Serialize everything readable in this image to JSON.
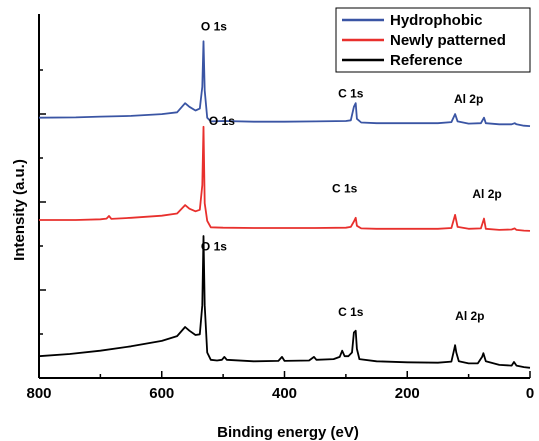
{
  "chart_data": {
    "type": "line",
    "xlabel": "Binding energy (eV)",
    "ylabel": "Intensity (a.u.)",
    "xlim": [
      800,
      0
    ],
    "x_reversed": true,
    "xticks": [
      "800",
      "600",
      "400",
      "200",
      "0"
    ],
    "grid": false,
    "legend_position": "top-right",
    "series": [
      {
        "name": "Hydrophobic",
        "color": "#3a55a4",
        "points": [
          [
            800,
            0.715
          ],
          [
            740,
            0.716
          ],
          [
            700,
            0.718
          ],
          [
            650,
            0.72
          ],
          [
            600,
            0.725
          ],
          [
            575,
            0.73
          ],
          [
            562,
            0.755
          ],
          [
            555,
            0.745
          ],
          [
            545,
            0.735
          ],
          [
            538,
            0.74
          ],
          [
            534,
            0.8
          ],
          [
            532,
            0.925
          ],
          [
            530,
            0.79
          ],
          [
            526,
            0.715
          ],
          [
            520,
            0.705
          ],
          [
            500,
            0.706
          ],
          [
            450,
            0.704
          ],
          [
            400,
            0.704
          ],
          [
            350,
            0.705
          ],
          [
            300,
            0.706
          ],
          [
            292,
            0.708
          ],
          [
            287,
            0.745
          ],
          [
            284,
            0.755
          ],
          [
            282,
            0.712
          ],
          [
            275,
            0.702
          ],
          [
            250,
            0.7
          ],
          [
            200,
            0.7
          ],
          [
            150,
            0.7
          ],
          [
            128,
            0.703
          ],
          [
            122,
            0.725
          ],
          [
            118,
            0.705
          ],
          [
            100,
            0.699
          ],
          [
            80,
            0.7
          ],
          [
            75,
            0.715
          ],
          [
            72,
            0.7
          ],
          [
            50,
            0.697
          ],
          [
            30,
            0.697
          ],
          [
            25,
            0.7
          ],
          [
            22,
            0.697
          ],
          [
            10,
            0.693
          ],
          [
            0,
            0.692
          ]
        ]
      },
      {
        "name": "Newly patterned",
        "color": "#e8302d",
        "points": [
          [
            800,
            0.434
          ],
          [
            740,
            0.434
          ],
          [
            700,
            0.436
          ],
          [
            690,
            0.438
          ],
          [
            686,
            0.445
          ],
          [
            682,
            0.437
          ],
          [
            650,
            0.44
          ],
          [
            600,
            0.446
          ],
          [
            575,
            0.452
          ],
          [
            562,
            0.475
          ],
          [
            555,
            0.465
          ],
          [
            545,
            0.458
          ],
          [
            538,
            0.462
          ],
          [
            534,
            0.53
          ],
          [
            532,
            0.69
          ],
          [
            530,
            0.48
          ],
          [
            526,
            0.432
          ],
          [
            520,
            0.414
          ],
          [
            500,
            0.413
          ],
          [
            450,
            0.412
          ],
          [
            400,
            0.412
          ],
          [
            350,
            0.412
          ],
          [
            300,
            0.413
          ],
          [
            292,
            0.415
          ],
          [
            287,
            0.43
          ],
          [
            284,
            0.44
          ],
          [
            282,
            0.418
          ],
          [
            275,
            0.411
          ],
          [
            250,
            0.41
          ],
          [
            200,
            0.41
          ],
          [
            150,
            0.41
          ],
          [
            128,
            0.412
          ],
          [
            122,
            0.448
          ],
          [
            118,
            0.415
          ],
          [
            100,
            0.41
          ],
          [
            80,
            0.411
          ],
          [
            75,
            0.438
          ],
          [
            72,
            0.41
          ],
          [
            50,
            0.407
          ],
          [
            30,
            0.408
          ],
          [
            25,
            0.411
          ],
          [
            22,
            0.407
          ],
          [
            10,
            0.405
          ],
          [
            0,
            0.404
          ]
        ]
      },
      {
        "name": "Reference",
        "color": "#000000",
        "points": [
          [
            800,
            0.06
          ],
          [
            750,
            0.066
          ],
          [
            700,
            0.075
          ],
          [
            650,
            0.087
          ],
          [
            600,
            0.102
          ],
          [
            575,
            0.115
          ],
          [
            562,
            0.14
          ],
          [
            555,
            0.13
          ],
          [
            545,
            0.118
          ],
          [
            538,
            0.12
          ],
          [
            534,
            0.2
          ],
          [
            532,
            0.39
          ],
          [
            530,
            0.2
          ],
          [
            526,
            0.07
          ],
          [
            520,
            0.05
          ],
          [
            510,
            0.048
          ],
          [
            502,
            0.05
          ],
          [
            498,
            0.058
          ],
          [
            494,
            0.05
          ],
          [
            450,
            0.046
          ],
          [
            410,
            0.047
          ],
          [
            404,
            0.058
          ],
          [
            400,
            0.047
          ],
          [
            360,
            0.048
          ],
          [
            352,
            0.058
          ],
          [
            348,
            0.05
          ],
          [
            320,
            0.052
          ],
          [
            310,
            0.058
          ],
          [
            306,
            0.075
          ],
          [
            302,
            0.06
          ],
          [
            296,
            0.06
          ],
          [
            290,
            0.07
          ],
          [
            287,
            0.125
          ],
          [
            284,
            0.13
          ],
          [
            282,
            0.08
          ],
          [
            278,
            0.052
          ],
          [
            250,
            0.046
          ],
          [
            200,
            0.043
          ],
          [
            150,
            0.042
          ],
          [
            128,
            0.045
          ],
          [
            124,
            0.075
          ],
          [
            122,
            0.09
          ],
          [
            120,
            0.07
          ],
          [
            116,
            0.046
          ],
          [
            100,
            0.04
          ],
          [
            85,
            0.04
          ],
          [
            78,
            0.058
          ],
          [
            76,
            0.068
          ],
          [
            72,
            0.046
          ],
          [
            50,
            0.036
          ],
          [
            30,
            0.034
          ],
          [
            26,
            0.044
          ],
          [
            22,
            0.034
          ],
          [
            10,
            0.03
          ],
          [
            0,
            0.028
          ]
        ]
      }
    ],
    "annotations": [
      {
        "text": "O 1s",
        "x": 515,
        "y": 0.955
      },
      {
        "text": "C 1s",
        "x": 292,
        "y": 0.77
      },
      {
        "text": "Al 2p",
        "x": 100,
        "y": 0.755
      },
      {
        "text": "O 1s",
        "x": 502,
        "y": 0.695
      },
      {
        "text": "C 1s",
        "x": 302,
        "y": 0.51
      },
      {
        "text": "Al 2p",
        "x": 70,
        "y": 0.495
      },
      {
        "text": "O 1s",
        "x": 515,
        "y": 0.35
      },
      {
        "text": "C 1s",
        "x": 292,
        "y": 0.17
      },
      {
        "text": "Al 2p",
        "x": 98,
        "y": 0.16
      }
    ]
  }
}
